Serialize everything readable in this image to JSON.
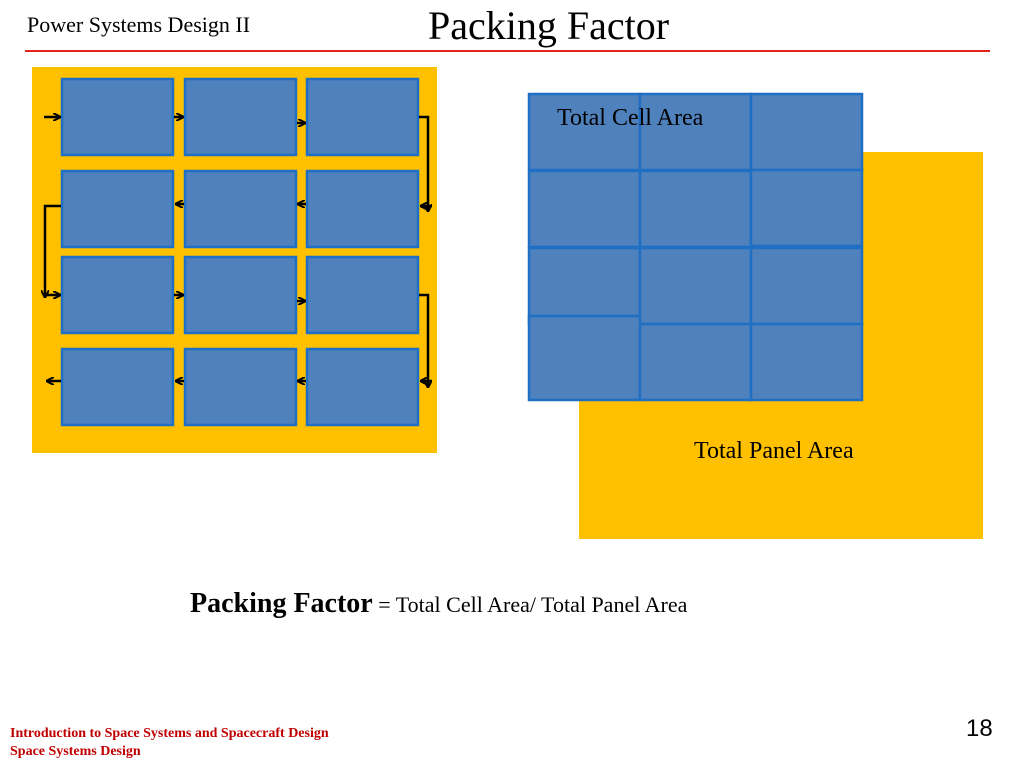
{
  "header": {
    "course": "Power Systems Design II",
    "title": "Packing Factor"
  },
  "diagram": {
    "colors": {
      "panel": "#ffc000",
      "cell": "#4f81bd",
      "cell_border": "#1f6fc4",
      "rule": "#e3231c",
      "footer_text": "#c00000"
    },
    "left_panel": {
      "rows": 4,
      "cols": 3
    },
    "right_panel": {
      "cell_label": "Total Cell Area",
      "panel_label": "Total Panel Area"
    }
  },
  "formula": {
    "term": "Packing Factor",
    "expression": " = Total Cell Area/ Total Panel Area"
  },
  "footer": {
    "line1": "Introduction to Space Systems and Spacecraft Design",
    "line2": "Space Systems Design"
  },
  "page_number": "18"
}
